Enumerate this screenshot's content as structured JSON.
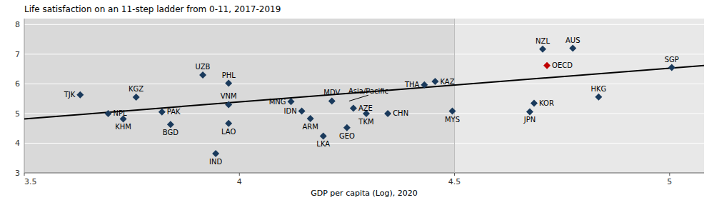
{
  "chart_data": {
    "type": "scatter",
    "title": "Life satisfaction on an 11-step ladder from 0-11, 2017-2019",
    "x_label": "GDP per capita (Log), 2020",
    "xlim": [
      3.5,
      5.08
    ],
    "ylim": [
      3.0,
      8.2
    ],
    "xticks": [
      3.5,
      4,
      4.5,
      5
    ],
    "yticks": [
      3,
      4,
      5,
      6,
      7,
      8
    ],
    "grid": true,
    "reference_lines": [
      {
        "axis": "x",
        "value": 4.5
      }
    ],
    "annotations": [
      {
        "text": "Asia/Pacific",
        "x": 4.3,
        "y": 5.62,
        "point_x": 4.255,
        "point_y": 5.42
      }
    ],
    "series": [
      {
        "type": "line",
        "color": "#000000",
        "x": [
          3.5,
          5.08
        ],
        "values": [
          4.82,
          6.62
        ]
      },
      {
        "type": "scatter",
        "marker": "diamond",
        "color": "#1a3a5c",
        "labels": [
          "TJK",
          "KGZ",
          "NPL",
          "KHM",
          "PAK",
          "BGD",
          "UZB",
          "PHL",
          "VNM",
          "LAO",
          "IND",
          "MNG",
          "MDV",
          "IDN",
          "ARM",
          "LKA",
          "AZE",
          "TKM",
          "CHN",
          "GEO",
          "THA",
          "KAZ",
          "MYS",
          "JPN",
          "KOR",
          "NZL",
          "AUS",
          "HKG",
          "SGP"
        ],
        "x": [
          3.63,
          3.76,
          3.695,
          3.73,
          3.82,
          3.84,
          3.915,
          3.975,
          3.975,
          3.975,
          3.945,
          4.12,
          4.215,
          4.145,
          4.165,
          4.195,
          4.265,
          4.295,
          4.345,
          4.25,
          4.43,
          4.455,
          4.495,
          4.675,
          4.685,
          4.705,
          4.775,
          4.835,
          5.005
        ],
        "values": [
          5.63,
          5.55,
          5.0,
          4.82,
          5.05,
          4.63,
          6.3,
          6.02,
          5.3,
          4.67,
          3.65,
          5.4,
          5.42,
          5.08,
          4.83,
          4.24,
          5.18,
          5.0,
          5.0,
          4.52,
          5.97,
          6.08,
          5.08,
          5.06,
          5.35,
          7.17,
          7.2,
          5.56,
          6.55
        ]
      },
      {
        "type": "scatter",
        "marker": "diamond",
        "color": "#c00000",
        "labels": [
          "OECD"
        ],
        "x": [
          4.715
        ],
        "values": [
          6.62
        ]
      }
    ]
  }
}
